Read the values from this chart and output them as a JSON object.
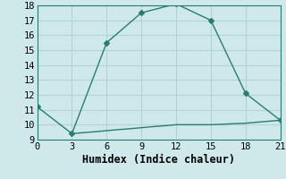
{
  "line1_x": [
    0,
    3,
    6,
    9,
    12,
    15,
    18,
    21
  ],
  "line1_y": [
    11.2,
    9.4,
    15.5,
    17.5,
    18.1,
    17.0,
    12.1,
    10.3
  ],
  "line2_x": [
    3,
    4,
    5,
    6,
    7,
    8,
    9,
    10,
    11,
    12,
    13,
    14,
    15,
    16,
    17,
    18,
    19,
    20,
    21
  ],
  "line2_y": [
    9.4,
    9.47,
    9.53,
    9.6,
    9.67,
    9.73,
    9.8,
    9.87,
    9.93,
    10.0,
    10.0,
    10.0,
    10.0,
    10.03,
    10.07,
    10.1,
    10.17,
    10.23,
    10.3
  ],
  "color": "#2a7d6e",
  "bg_color": "#cfe8ea",
  "grid_color": "#b0d4d8",
  "xlabel": "Humidex (Indice chaleur)",
  "xlim": [
    0,
    21
  ],
  "ylim": [
    9,
    18
  ],
  "xticks": [
    0,
    3,
    6,
    9,
    12,
    15,
    18,
    21
  ],
  "yticks": [
    9,
    10,
    11,
    12,
    13,
    14,
    15,
    16,
    17,
    18
  ],
  "marker_size": 3,
  "line_width": 1.0,
  "font_size": 8.5
}
